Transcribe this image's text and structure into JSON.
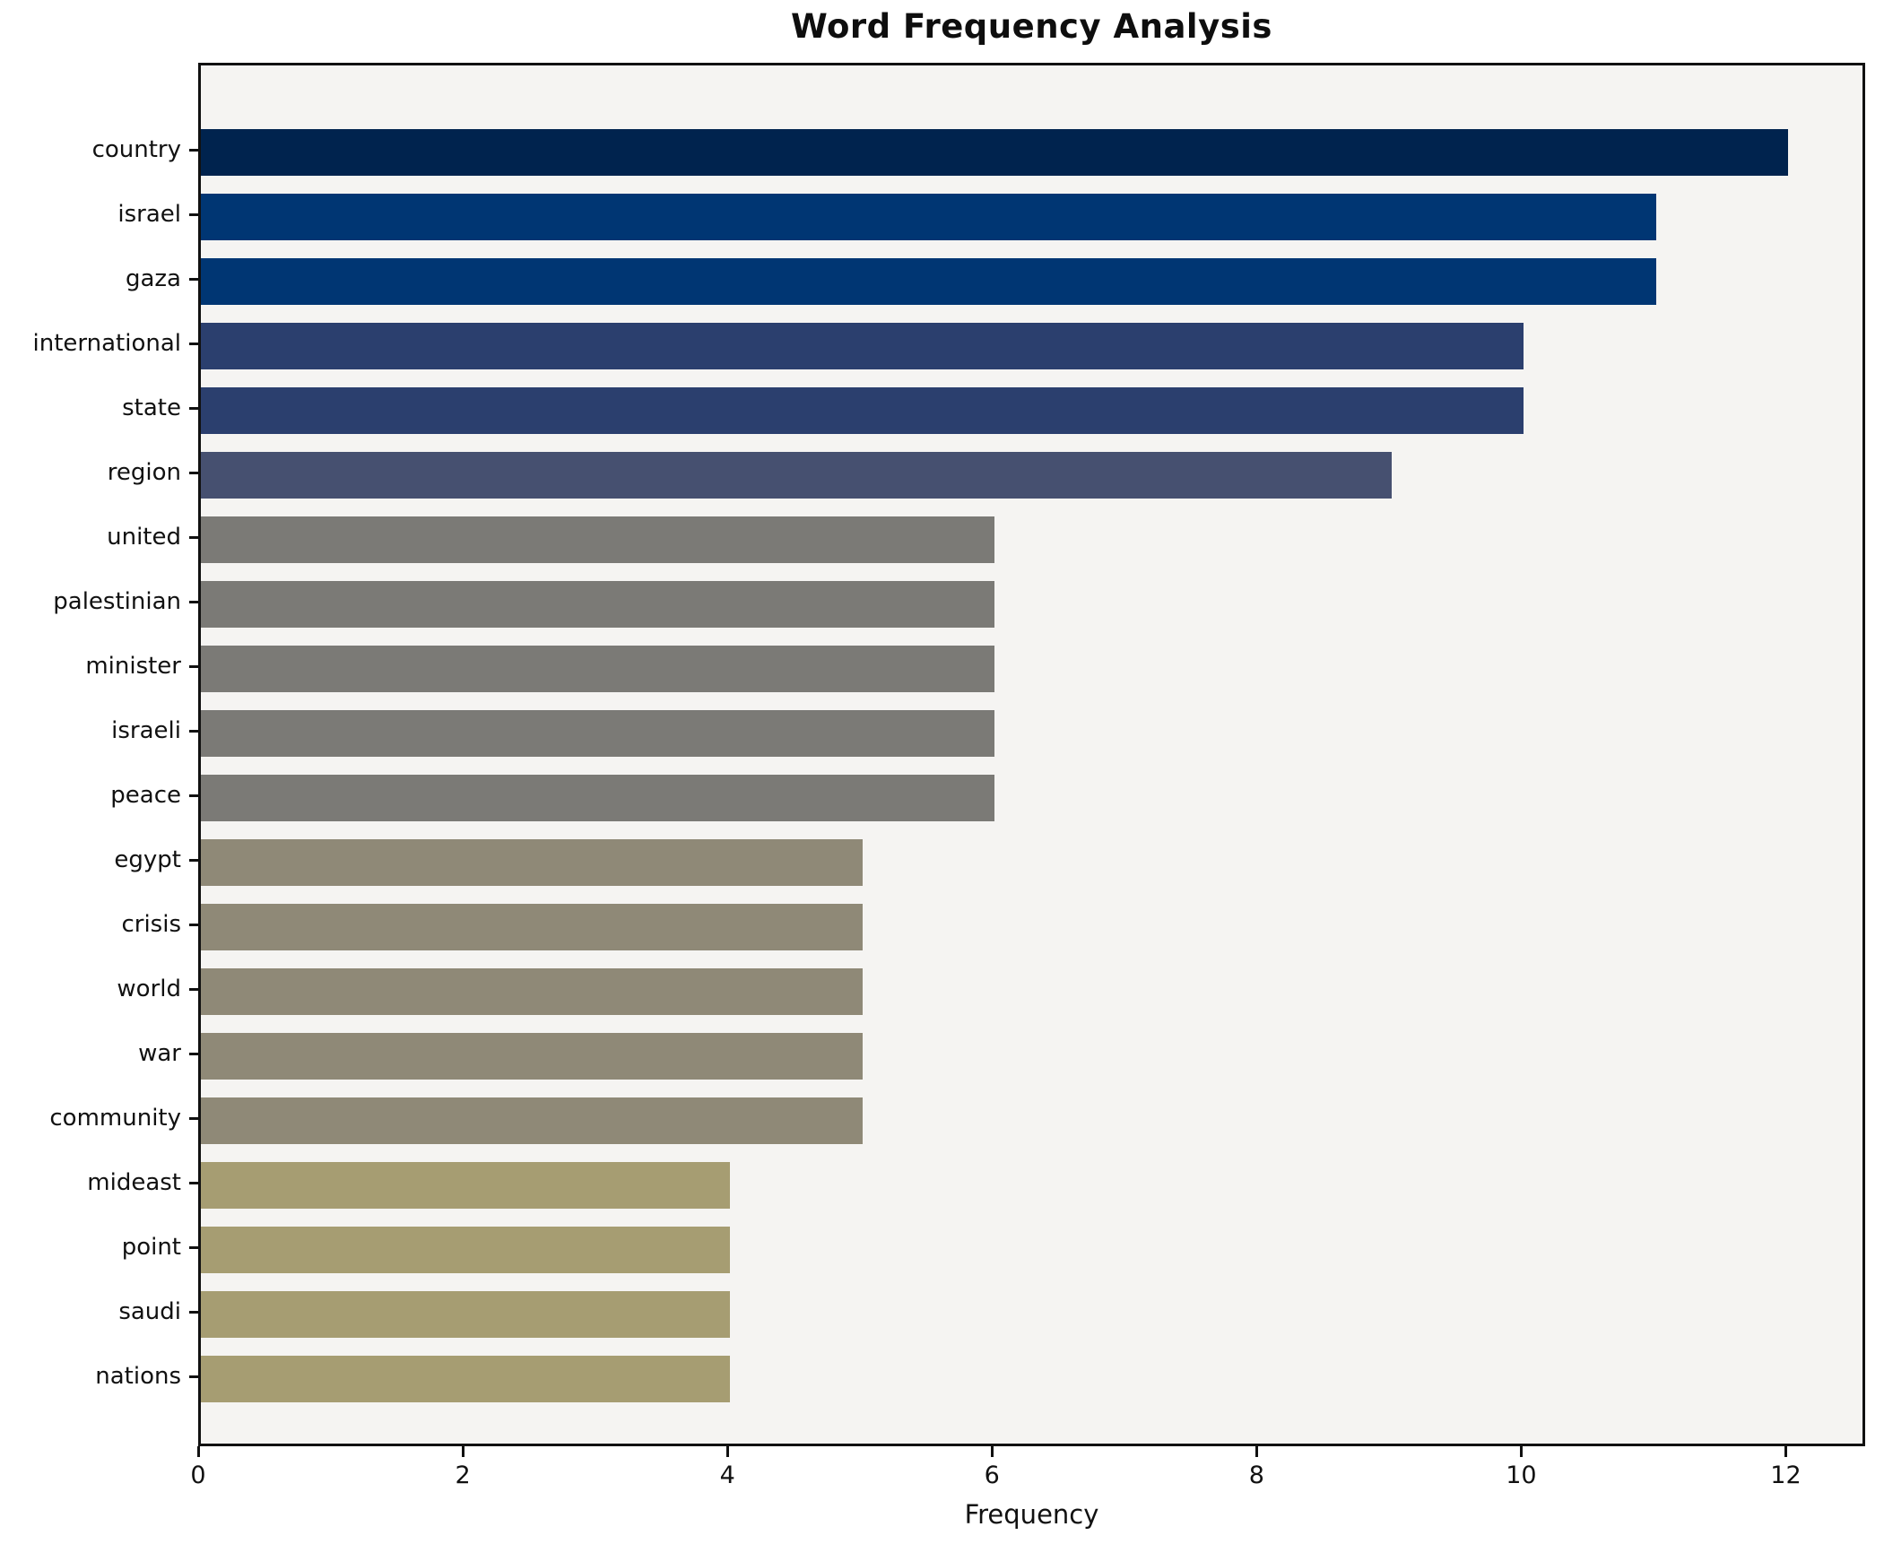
{
  "chart_data": {
    "type": "bar",
    "orientation": "horizontal",
    "title": "Word Frequency Analysis",
    "xlabel": "Frequency",
    "ylabel": "",
    "categories": [
      "country",
      "israel",
      "gaza",
      "international",
      "state",
      "region",
      "united",
      "palestinian",
      "minister",
      "israeli",
      "peace",
      "egypt",
      "crisis",
      "world",
      "war",
      "community",
      "mideast",
      "point",
      "saudi",
      "nations"
    ],
    "values": [
      12,
      11,
      11,
      10,
      10,
      9,
      6,
      6,
      6,
      6,
      6,
      5,
      5,
      5,
      5,
      5,
      4,
      4,
      4,
      4
    ],
    "bar_colors": [
      "#00234e",
      "#003673",
      "#003673",
      "#2b3f6e",
      "#2b3f6e",
      "#465070",
      "#7b7a76",
      "#7b7a76",
      "#7b7a76",
      "#7b7a76",
      "#7b7a76",
      "#8f8977",
      "#8f8977",
      "#8f8977",
      "#8f8977",
      "#8f8977",
      "#a69d72",
      "#a69d72",
      "#a69d72",
      "#a69d72"
    ],
    "x_ticks": [
      0,
      2,
      4,
      6,
      8,
      10,
      12
    ],
    "xlim": [
      0,
      12.6
    ],
    "grid": "off",
    "legend": "none",
    "colors": {
      "figure_background": "#ffffff",
      "plot_background": "#f5f4f2",
      "spine": "#111111",
      "text": "#111111"
    }
  }
}
